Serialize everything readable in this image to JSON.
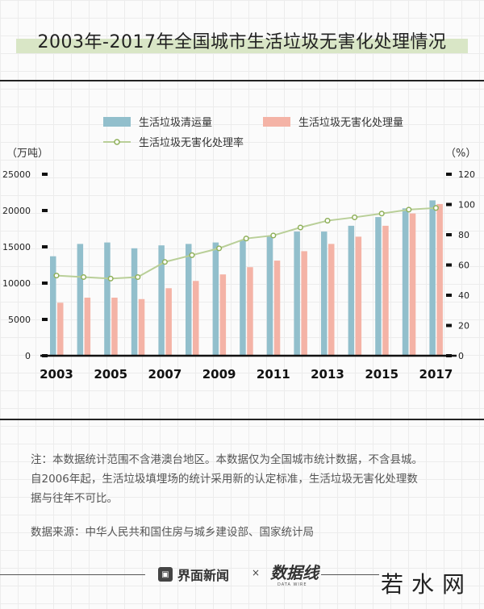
{
  "title": "2003年-2017年全国城市生活垃圾无害化处理情况",
  "chart_data": {
    "type": "bar",
    "categories": [
      "2003",
      "2004",
      "2005",
      "2006",
      "2007",
      "2008",
      "2009",
      "2010",
      "2011",
      "2012",
      "2013",
      "2014",
      "2015",
      "2016",
      "2017"
    ],
    "x_tick_labels": [
      "2003",
      "2005",
      "2007",
      "2009",
      "2011",
      "2013",
      "2015",
      "2017"
    ],
    "series": [
      {
        "name": "生活垃圾清运量",
        "kind": "bar",
        "axis": "left",
        "color": "#92bfcc",
        "values": [
          13700,
          15400,
          15600,
          14800,
          15200,
          15400,
          15600,
          15900,
          16400,
          17100,
          17100,
          17900,
          19100,
          20300,
          21400
        ]
      },
      {
        "name": "生活垃圾无害化处理量",
        "kind": "bar",
        "axis": "left",
        "color": "#f4b3a6",
        "values": [
          7300,
          8000,
          8000,
          7800,
          9300,
          10300,
          11200,
          12200,
          13100,
          14400,
          15400,
          16400,
          17900,
          19600,
          20900
        ]
      },
      {
        "name": "生活垃圾无害化处理率",
        "kind": "line",
        "axis": "right",
        "color": "#b9cf98",
        "values": [
          53,
          52,
          51,
          52,
          62,
          66.5,
          71,
          77.5,
          79.5,
          84.8,
          89.3,
          91.5,
          94,
          96.6,
          97.7
        ]
      }
    ],
    "ylabel": "（万吨）",
    "y2label": "（%）",
    "ylim": [
      0,
      25000
    ],
    "y_ticks": [
      "0",
      "5000",
      "10000",
      "15000",
      "20000",
      "25000"
    ],
    "y2lim": [
      0,
      120
    ],
    "y2_ticks": [
      "0",
      "20",
      "40",
      "60",
      "80",
      "100",
      "120"
    ],
    "legend_placement": "top",
    "grid": false
  },
  "notes": {
    "line1": "注：本数据统计范围不含港澳台地区。本数据仅为全国城市统计数据，不含县城。",
    "line2": "自2006年起，生活垃圾填埋场的统计采用新的认定标准，生活垃圾无害化处理数",
    "line3": "据与往年不可比。",
    "source": "数据来源：中华人民共和国住房与城乡建设部、国家统计局"
  },
  "footer": {
    "brand": "界面新闻",
    "times": "×",
    "partner": "数据线",
    "partner_sub": "DATA WIRE",
    "watermark": "若水网"
  }
}
